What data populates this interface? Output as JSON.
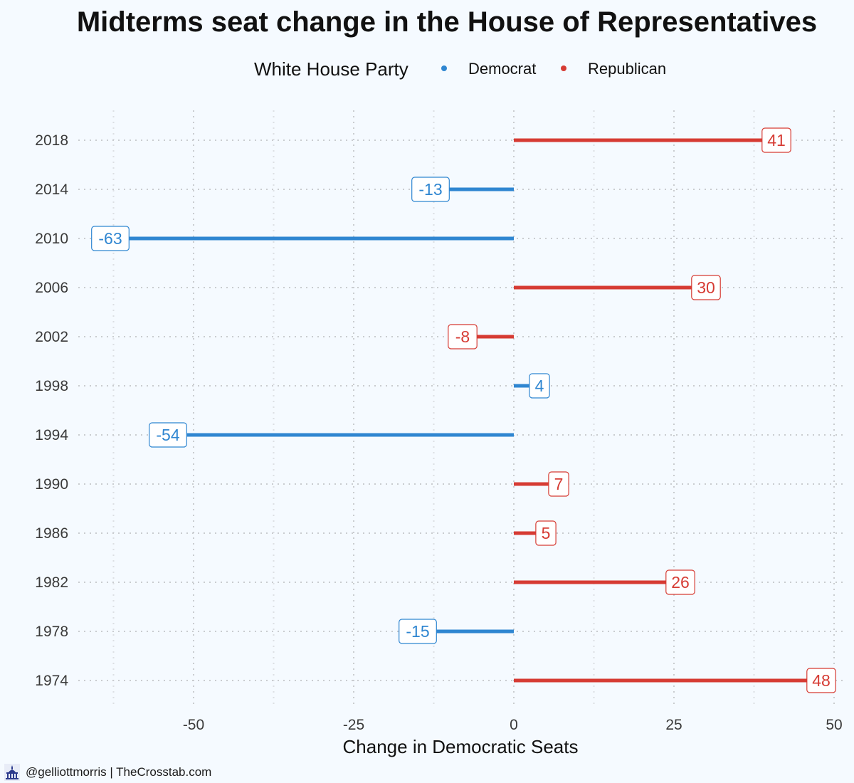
{
  "title": "Midterms seat change in the House of Representatives",
  "legend": {
    "title": "White House Party",
    "items": [
      {
        "label": "Democrat",
        "color": "#2f86d1"
      },
      {
        "label": "Republican",
        "color": "#d63b33"
      }
    ]
  },
  "footer": {
    "credit": "@gelliottmorris | TheCrosstab.com",
    "icon": "capitol-icon"
  },
  "chart_data": {
    "type": "bar",
    "orientation": "horizontal",
    "title": "Midterms seat change in the House of Representatives",
    "xlabel": "Change in Democratic Seats",
    "ylabel": "",
    "xlim": [
      -68,
      52
    ],
    "xticks": [
      -50,
      -25,
      0,
      25,
      50
    ],
    "xtick_labels": [
      "-50",
      "-25",
      "0",
      "25",
      "50"
    ],
    "grid": "dotted",
    "legend_position": "top",
    "categories": [
      "2018",
      "2014",
      "2010",
      "2006",
      "2002",
      "1998",
      "1994",
      "1990",
      "1986",
      "1982",
      "1978",
      "1974"
    ],
    "values": [
      41,
      -13,
      -63,
      30,
      -8,
      4,
      -54,
      7,
      5,
      26,
      -15,
      48
    ],
    "white_house_party": [
      "Republican",
      "Democrat",
      "Democrat",
      "Republican",
      "Republican",
      "Democrat",
      "Democrat",
      "Republican",
      "Republican",
      "Republican",
      "Democrat",
      "Republican"
    ],
    "colors": {
      "Democrat": "#2f86d1",
      "Republican": "#d63b33"
    }
  }
}
